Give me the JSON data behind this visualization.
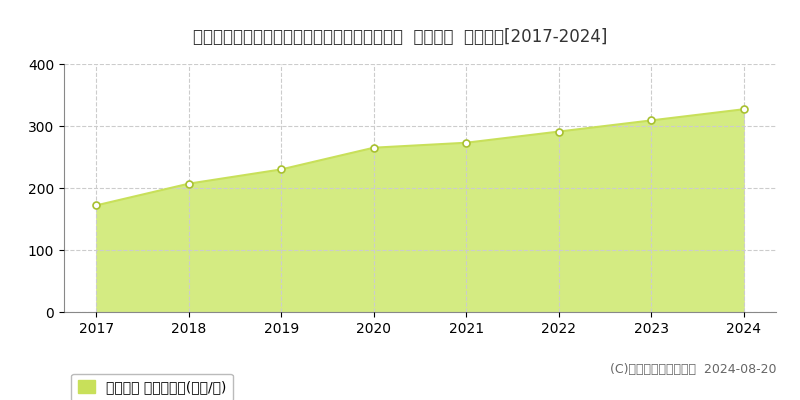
{
  "title": "北海道札幌市中央区大通西１８丁目１番２９外  地価公示  地価推移[2017-2024]",
  "years": [
    2017,
    2018,
    2019,
    2020,
    2021,
    2022,
    2023,
    2024
  ],
  "values": [
    172,
    207,
    230,
    265,
    273,
    291,
    309,
    327
  ],
  "ylim": [
    0,
    400
  ],
  "yticks": [
    0,
    100,
    200,
    300,
    400
  ],
  "line_color": "#c8e05a",
  "fill_color": "#d4eb82",
  "marker_face": "#ffffff",
  "marker_edge": "#a8c030",
  "bg_color": "#ffffff",
  "plot_bg_color": "#ffffff",
  "grid_color": "#cccccc",
  "legend_label": "地価公示 平均坪単価(万円/坪)",
  "legend_color": "#c8e05a",
  "copyright_text": "(C)土地価格ドットコム  2024-08-20",
  "title_fontsize": 12,
  "tick_fontsize": 10,
  "legend_fontsize": 10,
  "copyright_fontsize": 9,
  "xlim_left": 2016.65,
  "xlim_right": 2024.35
}
